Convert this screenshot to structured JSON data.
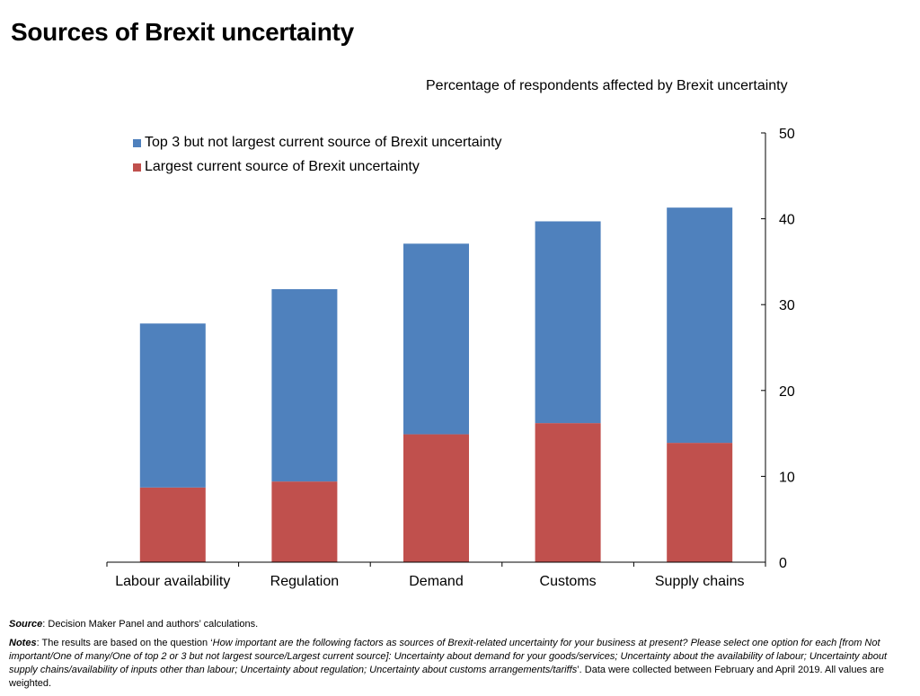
{
  "title": "Sources of Brexit uncertainty",
  "subtitle": "Percentage of respondents affected by Brexit uncertainty",
  "chart_data": {
    "type": "bar",
    "stacked": true,
    "categories": [
      "Labour availability",
      "Regulation",
      "Demand",
      "Customs",
      "Supply chains"
    ],
    "series": [
      {
        "name": "Largest current source of Brexit uncertainty",
        "color": "#c0504d",
        "values": [
          8.7,
          9.4,
          14.9,
          16.2,
          13.9
        ]
      },
      {
        "name": "Top 3 but not largest current source of Brexit uncertainty",
        "color": "#4f81bd",
        "values": [
          19.1,
          22.4,
          22.2,
          23.5,
          27.4
        ]
      }
    ],
    "y_axis_position": "right",
    "ylim": [
      0,
      50
    ],
    "yticks": [
      0,
      10,
      20,
      30,
      40,
      50
    ],
    "grid": false,
    "legend_placement": "top-left"
  },
  "footer": {
    "source_label": "Source",
    "source_text": ": Decision Maker Panel and authors’ calculations.",
    "notes_label": "Notes",
    "notes_prefix": ": The results are based on the question ‘",
    "notes_question": "How important are the following factors as sources of Brexit-related uncertainty for your business at present? Please select one option for each [from Not important/One of many/One of top 2 or 3 but not largest source/Largest current source]: Uncertainty about demand for your goods/services; Uncertainty about the availability of labour; Uncertainty about supply chains/availability of inputs other than labour; Uncertainty about regulation; Uncertainty about customs arrangements/tariffs",
    "notes_suffix": "’. Data were collected between February and April 2019.  All values are weighted."
  }
}
